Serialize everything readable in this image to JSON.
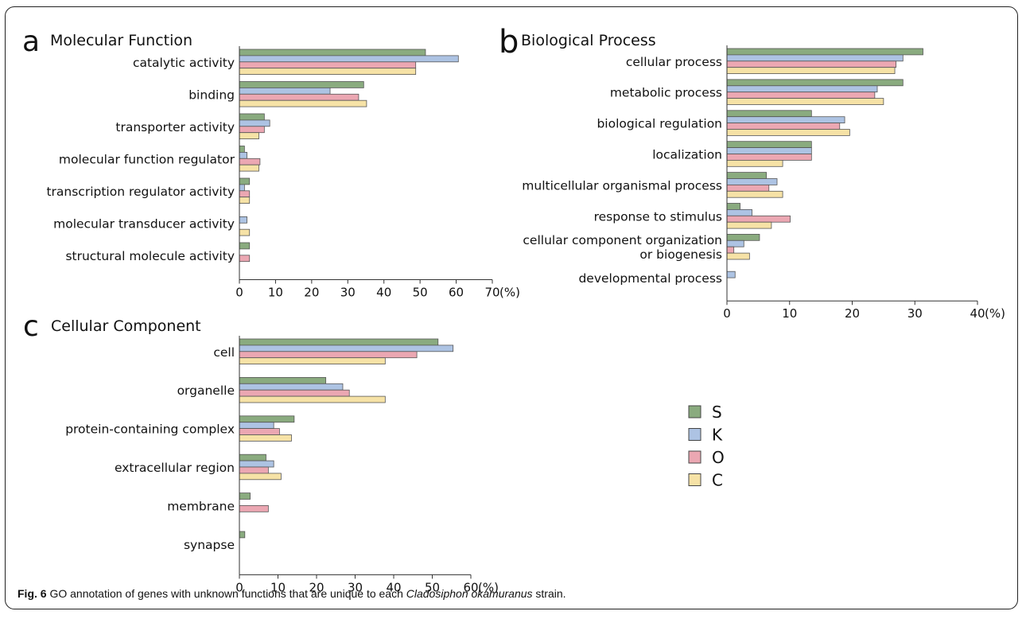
{
  "caption": {
    "label": "Fig. 6",
    "text_before": " GO annotation of genes with unknown functions that are unique to each ",
    "species": "Cladosiphon okamuranus",
    "text_after": " strain."
  },
  "colors": {
    "S": "#8aab7f",
    "K": "#adc3e3",
    "O": "#eba7b2",
    "C": "#f6e2a6"
  },
  "legend": [
    "S",
    "K",
    "O",
    "C"
  ],
  "chart_data": [
    {
      "type": "bar",
      "orientation": "horizontal",
      "panel": "a",
      "title": "Molecular Function",
      "categories": [
        "catalytic activity",
        "binding",
        "transporter activity",
        "molecular function regulator",
        "transcription regulator activity",
        "molecular transducer activity",
        "structural molecule activity"
      ],
      "series": [
        {
          "name": "S",
          "values": [
            51.5,
            34.4,
            6.9,
            1.4,
            2.8,
            0,
            2.8
          ]
        },
        {
          "name": "K",
          "values": [
            60.6,
            25.1,
            8.4,
            2.1,
            1.4,
            2.1,
            0
          ]
        },
        {
          "name": "O",
          "values": [
            48.8,
            33.0,
            6.9,
            5.7,
            2.8,
            0,
            2.8
          ]
        },
        {
          "name": "C",
          "values": [
            48.8,
            35.2,
            5.4,
            5.4,
            2.8,
            2.8,
            0
          ]
        }
      ],
      "xlim": [
        0,
        70
      ],
      "xticks": [
        "0",
        "10",
        "20",
        "30",
        "40",
        "50",
        "60",
        "70"
      ],
      "unit": "(%)"
    },
    {
      "type": "bar",
      "orientation": "horizontal",
      "panel": "b",
      "title": "Biological Process",
      "categories": [
        "cellular process",
        "metabolic process",
        "biological regulation",
        "localization",
        "multicellular organismal process",
        "response to stimulus",
        "cellular component organization|or biogenesis",
        "developmental process"
      ],
      "series": [
        {
          "name": "S",
          "values": [
            31.3,
            28.1,
            13.5,
            13.5,
            6.3,
            2.1,
            5.2,
            0
          ]
        },
        {
          "name": "K",
          "values": [
            28.1,
            24.0,
            18.8,
            13.5,
            8.0,
            4.0,
            2.7,
            1.3
          ]
        },
        {
          "name": "O",
          "values": [
            27.0,
            23.6,
            18.0,
            13.5,
            6.7,
            10.1,
            1.1,
            0
          ]
        },
        {
          "name": "C",
          "values": [
            26.8,
            25.0,
            19.6,
            8.9,
            8.9,
            7.1,
            3.6,
            0
          ]
        }
      ],
      "xlim": [
        0,
        40
      ],
      "xticks": [
        "0",
        "10",
        "20",
        "30",
        "40"
      ],
      "unit": "(%)"
    },
    {
      "type": "bar",
      "orientation": "horizontal",
      "panel": "c",
      "title": "Cellular Component",
      "categories": [
        "cell",
        "organelle",
        "protein-containing complex",
        "extracellular region",
        "membrane",
        "synapse"
      ],
      "series": [
        {
          "name": "S",
          "values": [
            51.5,
            22.4,
            14.2,
            6.9,
            2.8,
            1.4
          ]
        },
        {
          "name": "K",
          "values": [
            55.4,
            26.8,
            8.9,
            8.9,
            0,
            0
          ]
        },
        {
          "name": "O",
          "values": [
            46.0,
            28.5,
            10.4,
            7.5,
            7.5,
            0
          ]
        },
        {
          "name": "C",
          "values": [
            37.8,
            37.8,
            13.5,
            10.8,
            0,
            0
          ]
        }
      ],
      "xlim": [
        0,
        60
      ],
      "xticks": [
        "0",
        "10",
        "20",
        "30",
        "40",
        "50",
        "60"
      ],
      "unit": "(%)"
    }
  ]
}
